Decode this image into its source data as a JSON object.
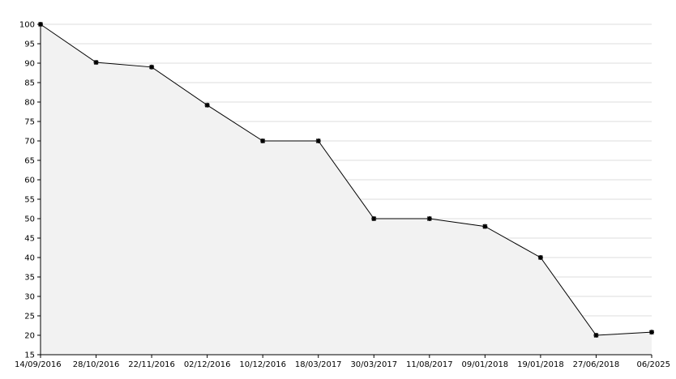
{
  "chart_data": {
    "type": "area",
    "title": "",
    "xlabel": "",
    "ylabel": "",
    "x": [
      "14/09/2016",
      "28/10/2016",
      "22/11/2016",
      "02/12/2016",
      "10/12/2016",
      "18/03/2017",
      "30/03/2017",
      "11/08/2017",
      "09/01/2018",
      "19/01/2018",
      "27/06/2018",
      "06/2025"
    ],
    "series": [
      {
        "values": [
          100,
          90.2,
          89,
          79.2,
          70,
          70,
          50,
          50,
          48,
          40,
          20,
          20.8
        ]
      }
    ],
    "ylim": [
      15,
      100
    ],
    "yticks": [
      15,
      20,
      25,
      30,
      35,
      40,
      45,
      50,
      55,
      60,
      65,
      70,
      75,
      80,
      85,
      90,
      95,
      100
    ],
    "grid": true,
    "legend": "none",
    "colors": {
      "line": "#000000",
      "fill": "#f2f2f2",
      "grid": "#dcdcdc",
      "axis": "#000000"
    }
  }
}
